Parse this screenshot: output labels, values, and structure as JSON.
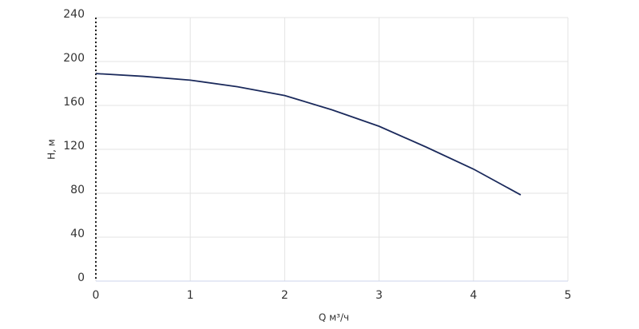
{
  "chart_data": {
    "type": "line",
    "x_label": "Q м³/ч",
    "y_label": "H, м",
    "x": [
      0,
      0.5,
      1,
      1.5,
      2,
      2.5,
      3,
      3.5,
      4,
      4.5
    ],
    "series": [
      {
        "color": "#1b2a5c",
        "values": [
          189,
          186.5,
          183,
          177,
          169,
          156,
          141,
          122,
          102,
          78.5
        ]
      }
    ],
    "xlim": [
      0,
      5
    ],
    "xticks": [
      0,
      1,
      2,
      3,
      4,
      5
    ],
    "ylim": [
      0,
      240
    ],
    "yticks": [
      0,
      40,
      80,
      120,
      160,
      200,
      240
    ],
    "grid": true
  }
}
